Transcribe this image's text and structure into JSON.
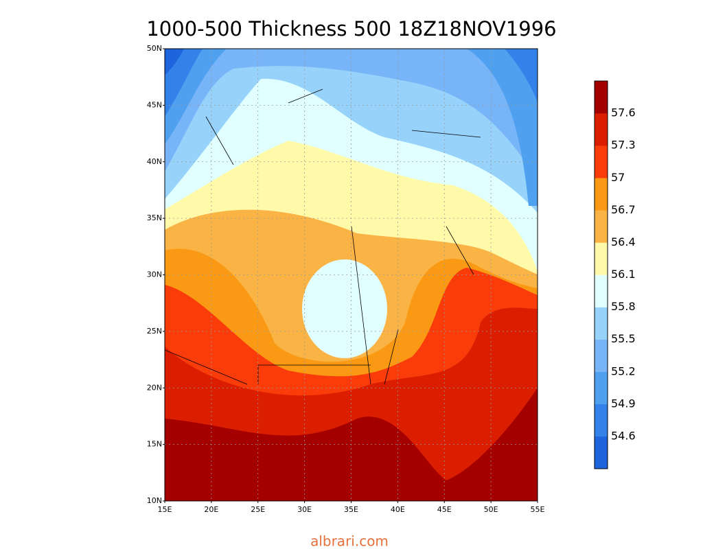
{
  "title": "1000-500 Thickness 500 18Z18NOV1996",
  "lat_ticks": [
    "10N",
    "15N",
    "20N",
    "25N",
    "30N",
    "35N",
    "40N",
    "45N",
    "50N"
  ],
  "lon_ticks": [
    "15E",
    "20E",
    "25E",
    "30E",
    "35E",
    "40E",
    "45E",
    "50E",
    "55E"
  ],
  "colorbar": {
    "ticks": [
      54.6,
      54.9,
      55.2,
      55.5,
      55.8,
      56.1,
      56.4,
      56.7,
      57,
      57.3,
      57.6
    ],
    "colors": [
      "#1e64dc",
      "#3282ea",
      "#50a0f0",
      "#78b4f8",
      "#96d2fa",
      "#e1ffff",
      "#fffaaa",
      "#fab446",
      "#fa9a14",
      "#fa3c0a",
      "#dc1e00",
      "#a50000"
    ]
  },
  "watermark": "albrari.com"
}
